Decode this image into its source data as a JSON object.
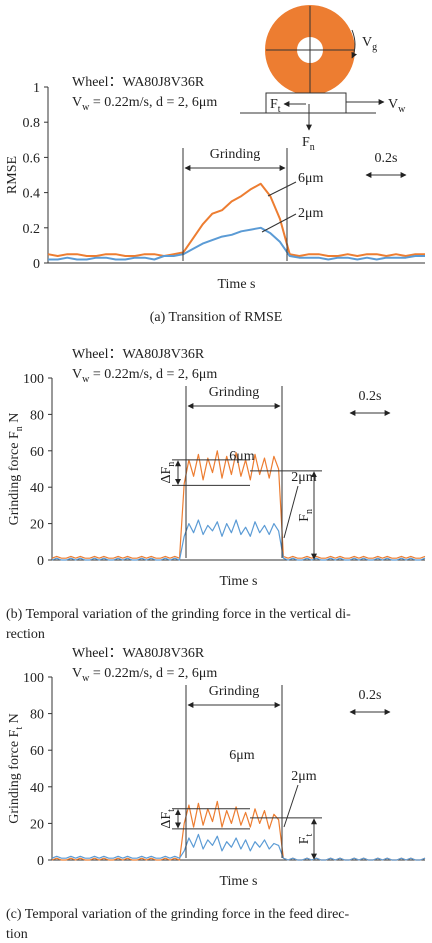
{
  "chart_data": [
    {
      "type": "line",
      "caption": [
        "(a) Transition of RMSE"
      ],
      "y_label": [
        "RMSE"
      ],
      "x_label": "Time s",
      "ylim": [
        0,
        1
      ],
      "yticks": [
        0,
        0.2,
        0.4,
        0.6,
        0.8,
        1
      ],
      "series": [
        {
          "name": "6μm",
          "color": "#ED7D31",
          "values": [
            0.05,
            0.04,
            0.05,
            0.05,
            0.04,
            0.04,
            0.05,
            0.05,
            0.04,
            0.04,
            0.05,
            0.05,
            0.04,
            0.05,
            0.06,
            0.14,
            0.22,
            0.28,
            0.3,
            0.35,
            0.38,
            0.42,
            0.45,
            0.38,
            0.25,
            0.05,
            0.04,
            0.05,
            0.05,
            0.04,
            0.04,
            0.05,
            0.04,
            0.05,
            0.05,
            0.04,
            0.05,
            0.04,
            0.05,
            0.05
          ]
        },
        {
          "name": "2μm",
          "color": "#5B9BD5",
          "values": [
            0.02,
            0.02,
            0.03,
            0.02,
            0.02,
            0.03,
            0.03,
            0.02,
            0.02,
            0.03,
            0.03,
            0.02,
            0.04,
            0.04,
            0.05,
            0.08,
            0.11,
            0.13,
            0.15,
            0.16,
            0.18,
            0.19,
            0.2,
            0.17,
            0.12,
            0.04,
            0.03,
            0.03,
            0.03,
            0.02,
            0.03,
            0.03,
            0.02,
            0.03,
            0.02,
            0.03,
            0.03,
            0.03,
            0.04,
            0.04
          ]
        }
      ],
      "annotations": {
        "wheel": "Wheel：WA80J8V36R",
        "condition": [
          "V",
          "w",
          " = 0.22m/s, d = 2, 6μm"
        ],
        "grinding": "Grinding",
        "period": "0.2s",
        "diagram": {
          "vg": [
            "V",
            "g"
          ],
          "ft": [
            "F",
            "t"
          ],
          "fn": [
            "F",
            "n"
          ],
          "vw": [
            "V",
            "w"
          ]
        }
      }
    },
    {
      "type": "line",
      "caption": [
        "(b) Temporal variation of the grinding force in the vertical di-",
        "rection"
      ],
      "y_label": [
        "Grinding force F",
        "n",
        " N"
      ],
      "x_label": "Time s",
      "ylim": [
        0,
        100
      ],
      "yticks": [
        0,
        20,
        40,
        60,
        80,
        100
      ],
      "series": [
        {
          "name": "6μm",
          "color": "#ED7D31",
          "values": [
            1,
            2,
            1,
            1,
            2,
            1,
            2,
            1,
            1,
            2,
            1,
            2,
            1,
            1,
            2,
            1,
            2,
            1,
            1,
            2,
            1,
            2,
            1,
            1,
            2,
            1,
            2,
            1,
            42,
            55,
            46,
            58,
            44,
            56,
            48,
            60,
            45,
            57,
            47,
            59,
            46,
            55,
            44,
            58,
            47,
            56,
            45,
            57,
            50,
            2,
            1,
            2,
            1,
            1,
            2,
            1,
            2,
            1,
            1,
            2,
            1,
            2,
            1,
            1,
            2,
            1,
            2,
            1,
            1,
            2,
            1,
            2,
            1,
            1,
            2,
            1,
            2,
            1,
            1,
            2
          ]
        },
        {
          "name": "2μm",
          "color": "#5B9BD5",
          "values": [
            0,
            1,
            0,
            0,
            1,
            0,
            1,
            0,
            0,
            1,
            0,
            1,
            0,
            0,
            1,
            0,
            1,
            0,
            0,
            1,
            0,
            1,
            0,
            0,
            1,
            0,
            1,
            0,
            13,
            20,
            15,
            22,
            14,
            19,
            16,
            21,
            13,
            20,
            15,
            22,
            14,
            18,
            13,
            21,
            15,
            19,
            14,
            20,
            16,
            1,
            0,
            1,
            0,
            0,
            1,
            0,
            1,
            0,
            0,
            1,
            0,
            1,
            0,
            0,
            1,
            0,
            1,
            0,
            0,
            1,
            0,
            1,
            0,
            0,
            1,
            0,
            1,
            0,
            0,
            1
          ]
        }
      ],
      "annotations": {
        "wheel": "Wheel：WA80J8V36R",
        "condition": [
          "V",
          "w",
          " = 0.22m/s, d = 2, 6μm"
        ],
        "grinding": "Grinding",
        "period": "0.2s",
        "delta": [
          "ΔF",
          "n"
        ],
        "force": [
          "F",
          "n"
        ]
      }
    },
    {
      "type": "line",
      "caption": [
        "(c) Temporal variation of the grinding force in the feed direc-",
        "tion"
      ],
      "y_label": [
        "Grinding force F",
        "t",
        " N"
      ],
      "x_label": "Time s",
      "ylim": [
        0,
        100
      ],
      "yticks": [
        0,
        20,
        40,
        60,
        80,
        100
      ],
      "series": [
        {
          "name": "6μm",
          "color": "#ED7D31",
          "values": [
            0,
            1,
            0,
            0,
            1,
            0,
            1,
            0,
            0,
            1,
            0,
            1,
            0,
            0,
            1,
            0,
            1,
            0,
            0,
            1,
            0,
            1,
            0,
            0,
            1,
            0,
            1,
            0,
            20,
            30,
            18,
            31,
            19,
            28,
            21,
            32,
            18,
            27,
            20,
            29,
            19,
            26,
            18,
            28,
            20,
            27,
            17,
            25,
            22,
            1,
            0,
            1,
            0,
            0,
            1,
            0,
            1,
            0,
            0,
            1,
            0,
            1,
            0,
            0,
            1,
            0,
            1,
            0,
            0,
            1,
            0,
            1,
            0,
            0,
            1,
            0,
            1,
            0,
            0,
            1
          ]
        },
        {
          "name": "2μm",
          "color": "#5B9BD5",
          "values": [
            1,
            2,
            1,
            1,
            2,
            1,
            2,
            1,
            1,
            2,
            1,
            2,
            1,
            1,
            2,
            1,
            2,
            1,
            1,
            2,
            1,
            2,
            1,
            1,
            2,
            1,
            2,
            1,
            5,
            12,
            7,
            14,
            6,
            11,
            8,
            13,
            5,
            10,
            7,
            12,
            6,
            11,
            5,
            10,
            7,
            11,
            6,
            9,
            8,
            1,
            0,
            1,
            0,
            0,
            1,
            0,
            1,
            0,
            0,
            1,
            0,
            1,
            0,
            0,
            1,
            0,
            1,
            0,
            0,
            1,
            0,
            1,
            0,
            0,
            1,
            0,
            1,
            0,
            0,
            1
          ]
        }
      ],
      "annotations": {
        "wheel": "Wheel：WA80J8V36R",
        "condition": [
          "V",
          "w",
          " = 0.22m/s, d = 2, 6μm"
        ],
        "grinding": "Grinding",
        "period": "0.2s",
        "delta": [
          "ΔF",
          "t"
        ],
        "force": [
          "F",
          "t"
        ]
      }
    }
  ]
}
